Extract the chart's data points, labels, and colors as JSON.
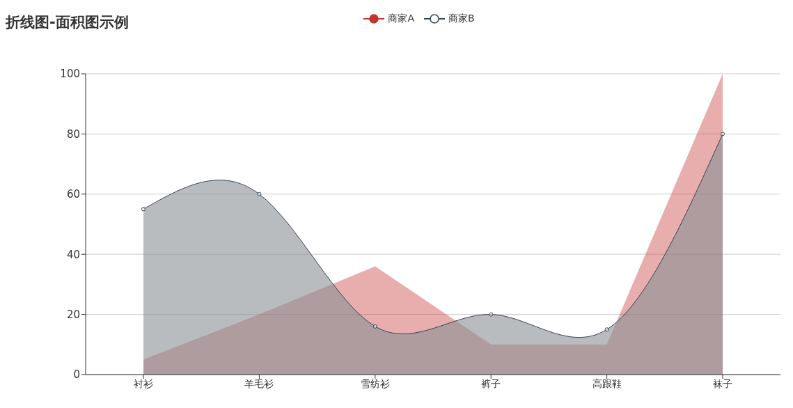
{
  "chart_data": {
    "type": "area",
    "title": "折线图-面积图示例",
    "categories": [
      "衬衫",
      "羊毛衫",
      "雪纺衫",
      "裤子",
      "高跟鞋",
      "袜子"
    ],
    "series": [
      {
        "name": "商家A",
        "color": "#c23531",
        "marker": "none",
        "values": [
          5,
          20,
          36,
          10,
          10,
          100
        ]
      },
      {
        "name": "商家B",
        "color": "#2f4554",
        "marker": "circle",
        "values": [
          55,
          60,
          16,
          20,
          15,
          80
        ]
      }
    ],
    "ylim": [
      0,
      100
    ],
    "yticks": [
      0,
      20,
      40,
      60,
      80,
      100
    ],
    "grid": "y",
    "legend": "top"
  }
}
